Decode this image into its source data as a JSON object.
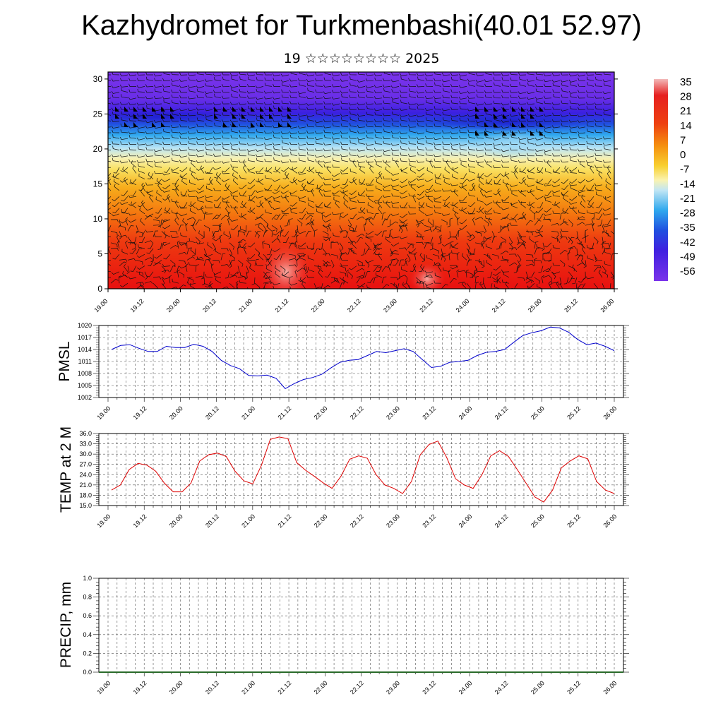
{
  "header": {
    "title": "Kazhydromet for Turkmenbashi(40.01 52.97)",
    "subtitle": "19 ☆☆☆☆☆☆☆☆ 2025"
  },
  "chart_data": [
    {
      "type": "heatmap",
      "title": "",
      "x_ticks": [
        "19.00",
        "19.12",
        "20.00",
        "20.12",
        "21.00",
        "21.12",
        "22.00",
        "22.12",
        "23.00",
        "23.12",
        "24.00",
        "24.12",
        "25.00",
        "25.12",
        "26.00"
      ],
      "y_ticks": [
        0,
        5,
        10,
        15,
        20,
        25,
        30
      ],
      "ylim": [
        0,
        31
      ],
      "colorbar": {
        "labels": [
          "35",
          "28",
          "21",
          "14",
          "7",
          "0",
          "-7",
          "-14",
          "-21",
          "-28",
          "-35",
          "-42",
          "-49",
          "-56"
        ],
        "range": [
          -60,
          38
        ]
      },
      "overlay": "wind barbs"
    },
    {
      "type": "line",
      "ylabel": "PMSL",
      "x_ticks": [
        "19.00",
        "19.12",
        "20.00",
        "20.12",
        "21.00",
        "21.12",
        "22.00",
        "22.12",
        "23.00",
        "23.12",
        "24.00",
        "24.12",
        "25.00",
        "25.12",
        "26.00"
      ],
      "y_ticks": [
        "1002",
        "1005",
        "1008",
        "1011",
        "1014",
        "1017",
        "1020"
      ],
      "ylim": [
        1002,
        1020
      ],
      "grid": true,
      "color": "#0000cc",
      "values": [
        1014,
        1015,
        1015.2,
        1014.3,
        1013.5,
        1013.5,
        1014.8,
        1014.5,
        1014.5,
        1015.3,
        1014.8,
        1013.5,
        1011.3,
        1010.0,
        1009.2,
        1007.5,
        1007.4,
        1007.6,
        1006.8,
        1004.2,
        1005.5,
        1006.5,
        1007.0,
        1007.8,
        1009.4,
        1010.8,
        1011.3,
        1011.5,
        1012.5,
        1013.5,
        1013.2,
        1013.7,
        1014.2,
        1013.5,
        1011.5,
        1009.5,
        1009.8,
        1010.8,
        1011.0,
        1011.3,
        1012.5,
        1013.3,
        1013.5,
        1014.0,
        1015.8,
        1017.5,
        1018.2,
        1018.7,
        1019.6,
        1019.4,
        1018.3,
        1016.5,
        1015.2,
        1015.6,
        1014.8,
        1013.7
      ]
    },
    {
      "type": "line",
      "ylabel": "TEMP at 2 M",
      "x_ticks": [
        "19.00",
        "19.12",
        "20.00",
        "20.12",
        "21.00",
        "21.12",
        "22.00",
        "22.12",
        "23.00",
        "23.12",
        "24.00",
        "24.12",
        "25.00",
        "25.12",
        "26.00"
      ],
      "y_ticks": [
        "15.0",
        "18.0",
        "21.0",
        "24.0",
        "27.0",
        "30.0",
        "33.0",
        "36.0"
      ],
      "ylim": [
        15,
        36
      ],
      "grid": true,
      "color": "#dd0000",
      "values": [
        19.5,
        21,
        25.5,
        27.3,
        26.8,
        25,
        21.5,
        19,
        19,
        21.5,
        28,
        29.8,
        30.3,
        29.3,
        25,
        22.2,
        21.3,
        26.8,
        34.3,
        35,
        34.5,
        27.5,
        25.3,
        23.5,
        21.6,
        20,
        23.5,
        28.5,
        29.5,
        28.8,
        24,
        21,
        20,
        18.5,
        22,
        29.8,
        32.8,
        33.8,
        29,
        22.8,
        21,
        20,
        24,
        29.5,
        31,
        29.3,
        25.5,
        21.5,
        17.5,
        16,
        19.5,
        26,
        28,
        29.5,
        28.6,
        22,
        19.5,
        18.5
      ]
    },
    {
      "type": "bar",
      "ylabel": "PRECIP, mm",
      "x_ticks": [
        "19.00",
        "19.12",
        "20.00",
        "20.12",
        "21.00",
        "21.12",
        "22.00",
        "22.12",
        "23.00",
        "23.12",
        "24.00",
        "24.12",
        "25.00",
        "25.12",
        "26.00"
      ],
      "y_ticks": [
        "0.0",
        "0.2",
        "0.4",
        "0.6",
        "0.8",
        "1.0"
      ],
      "ylim": [
        0,
        1
      ],
      "grid": true,
      "values": [
        0,
        0,
        0,
        0,
        0,
        0,
        0,
        0,
        0,
        0,
        0,
        0,
        0,
        0
      ]
    }
  ]
}
